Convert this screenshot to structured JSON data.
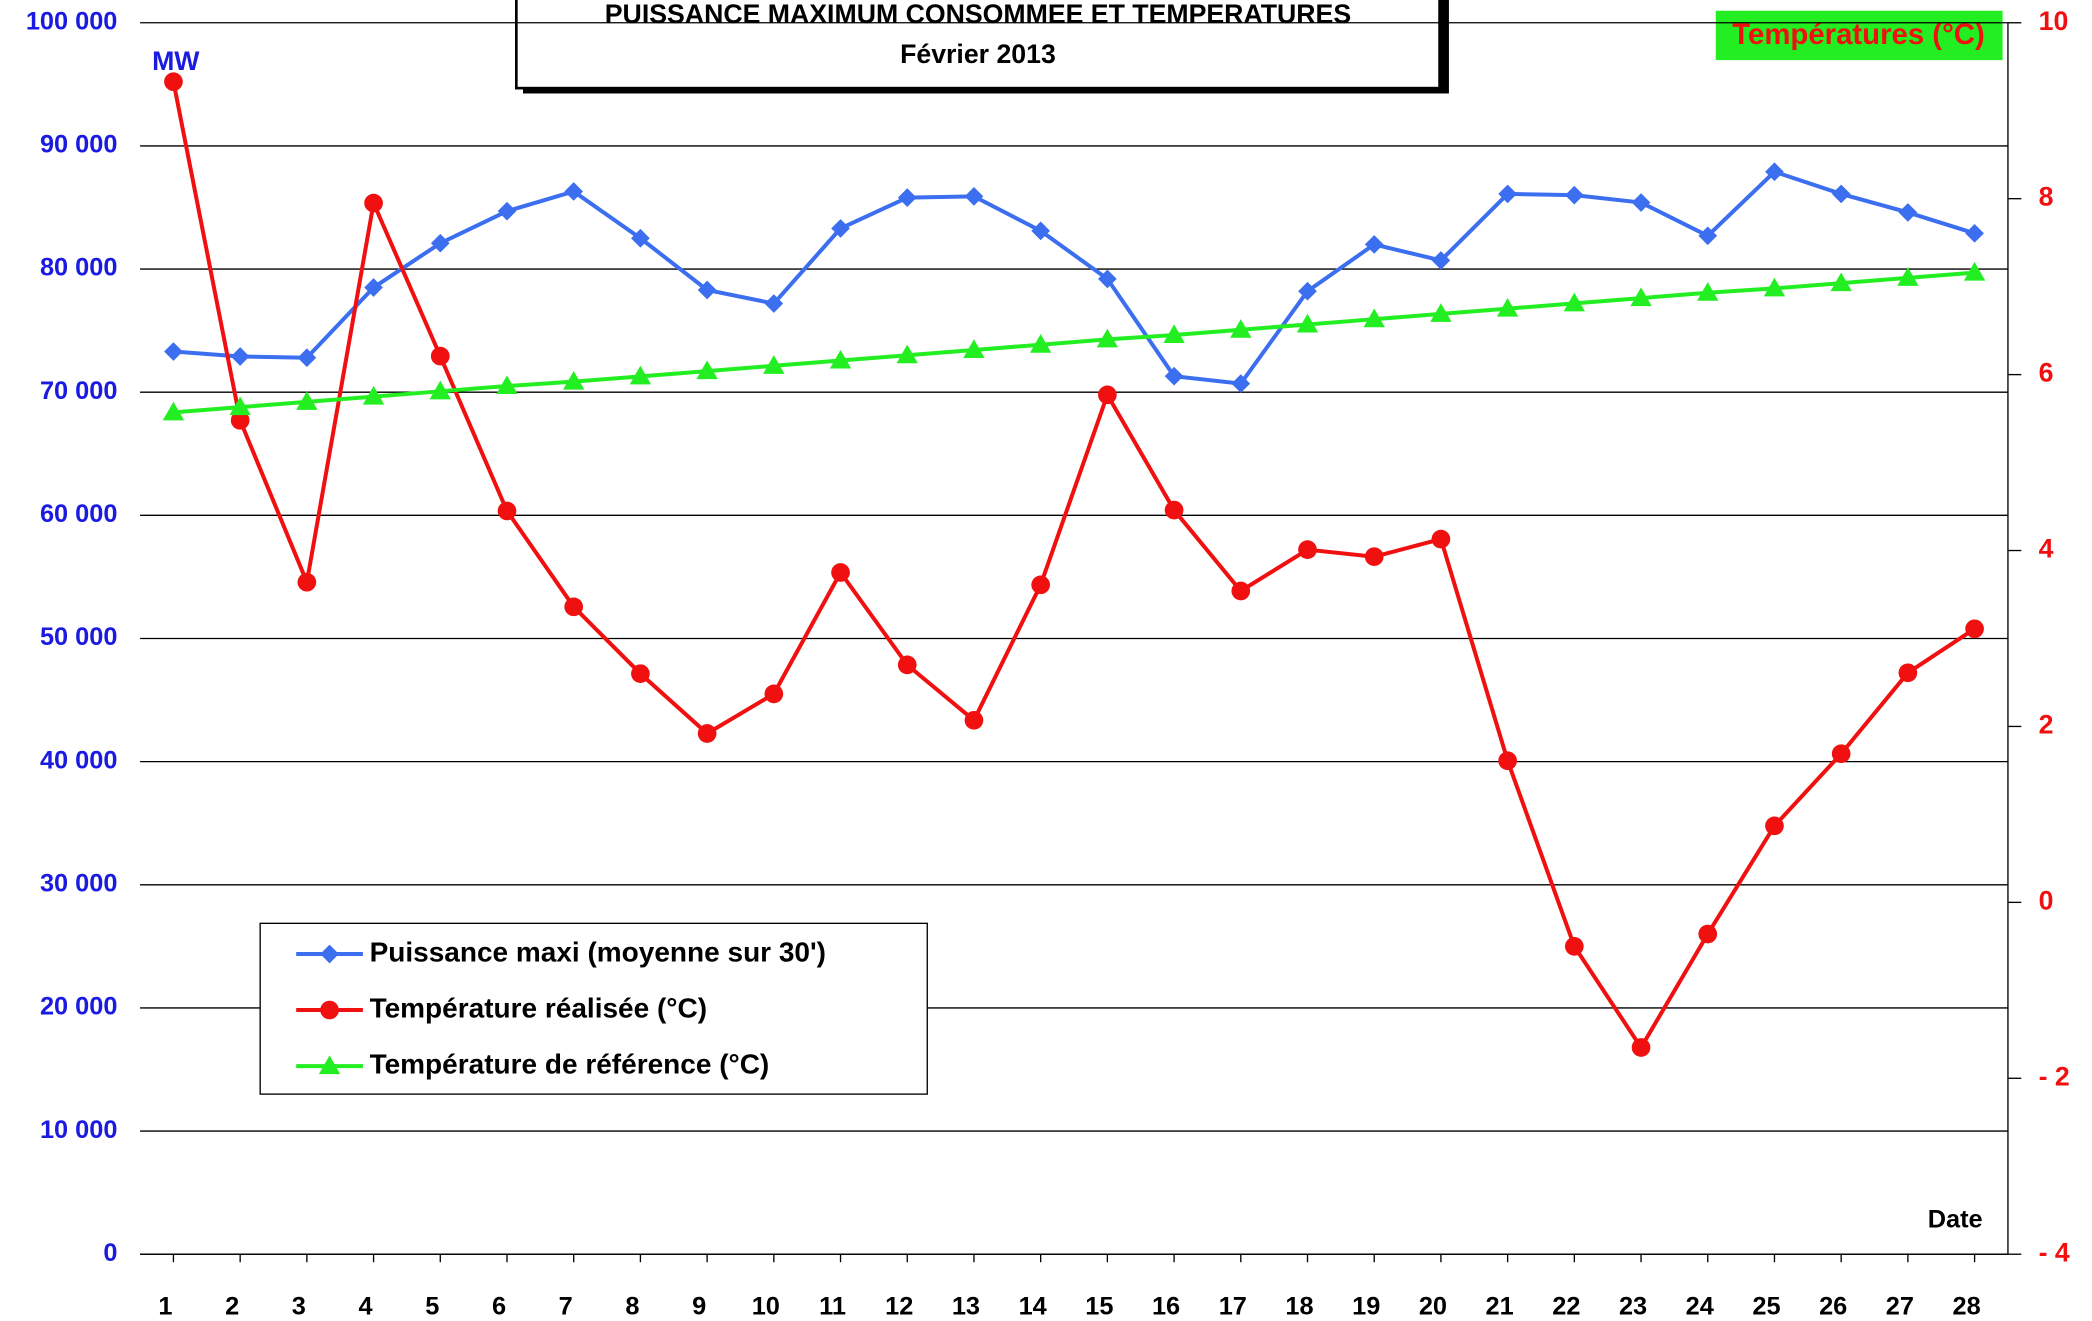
{
  "chart_data": {
    "type": "line",
    "title": "PUISSANCE  MAXIMUM CONSOMMEE ET TEMPERATURES",
    "subtitle": "Février  2013",
    "y_label": "MW",
    "y2_label": "Températures (°C)",
    "x_label": "Date",
    "categories": [
      "1",
      "2",
      "3",
      "4",
      "5",
      "6",
      "7",
      "8",
      "9",
      "10",
      "11",
      "12",
      "13",
      "14",
      "15",
      "16",
      "17",
      "18",
      "19",
      "20",
      "21",
      "22",
      "23",
      "24",
      "25",
      "26",
      "27",
      "28"
    ],
    "ylim": [
      0,
      100000
    ],
    "yticks": [
      {
        "value": 0,
        "label": "0"
      },
      {
        "value": 10000,
        "label": "10 000"
      },
      {
        "value": 20000,
        "label": "20 000"
      },
      {
        "value": 30000,
        "label": "30 000"
      },
      {
        "value": 40000,
        "label": "40 000"
      },
      {
        "value": 50000,
        "label": "50 000"
      },
      {
        "value": 60000,
        "label": "60 000"
      },
      {
        "value": 70000,
        "label": "70 000"
      },
      {
        "value": 80000,
        "label": "80 000"
      },
      {
        "value": 90000,
        "label": "90 000"
      },
      {
        "value": 100000,
        "label": "100 000"
      }
    ],
    "y2lim": [
      -4,
      10
    ],
    "y2ticks": [
      {
        "value": -4,
        "label": "- 4"
      },
      {
        "value": -2,
        "label": "- 2"
      },
      0,
      2,
      4,
      6,
      8,
      10
    ],
    "grid": true,
    "legend": "lower left",
    "series": [
      {
        "name": "Puissance maxi (moyenne sur 30')",
        "color": "#3c6ef0",
        "marker": "diamond",
        "values": [
          73300,
          72900,
          72800,
          78500,
          82100,
          84700,
          86300,
          82500,
          78300,
          77200,
          83300,
          85800,
          85900,
          83100,
          79200,
          71300,
          70700,
          78200,
          82000,
          80700,
          86100,
          86000,
          85400,
          82700,
          87900,
          86100,
          84600,
          82900
        ]
      },
      {
        "name": "Température réalisée (°C)",
        "color": "#f01010",
        "marker": "circle",
        "axis": "y2",
        "values": [
          9.33,
          5.48,
          3.64,
          7.95,
          6.21,
          4.45,
          3.36,
          2.6,
          1.92,
          2.37,
          3.75,
          2.7,
          2.07,
          3.61,
          5.77,
          4.46,
          3.54,
          4.01,
          3.93,
          4.13,
          1.61,
          -0.5,
          -1.65,
          -0.36,
          0.87,
          1.69,
          2.61,
          3.11
        ]
      },
      {
        "name": "Température de référence (°C)",
        "color": "#22ee22",
        "marker": "triangle",
        "axis": "y2",
        "values": [
          5.57,
          5.63,
          5.69,
          5.75,
          5.81,
          5.87,
          5.92,
          5.98,
          6.04,
          6.1,
          6.16,
          6.22,
          6.28,
          6.34,
          6.4,
          6.45,
          6.51,
          6.57,
          6.63,
          6.69,
          6.75,
          6.81,
          6.87,
          6.93,
          6.98,
          7.04,
          7.1,
          7.16
        ]
      }
    ]
  }
}
